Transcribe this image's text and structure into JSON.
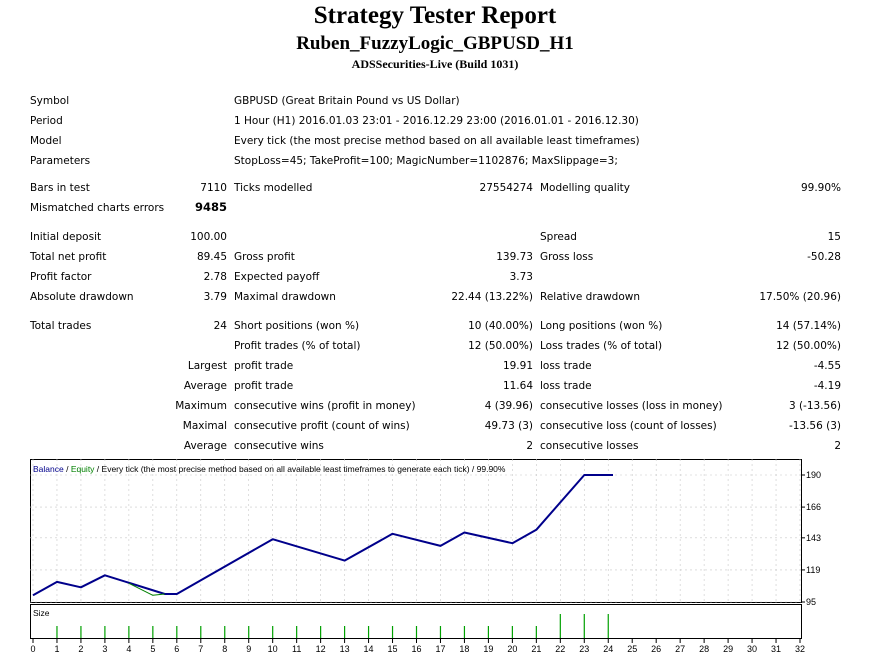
{
  "header": {
    "title": "Strategy Tester Report",
    "subtitle": "Ruben_FuzzyLogic_GBPUSD_H1",
    "build": "ADSSecurities-Live (Build 1031)"
  },
  "info": {
    "symbol_label": "Symbol",
    "symbol_value": "GBPUSD (Great Britain Pound vs US Dollar)",
    "period_label": "Period",
    "period_value": "1 Hour (H1) 2016.01.03 23:01 - 2016.12.29 23:00 (2016.01.01 - 2016.12.30)",
    "model_label": "Model",
    "model_value": "Every tick (the most precise method based on all available least timeframes)",
    "params_label": "Parameters",
    "params_value": "StopLoss=45; TakeProfit=100; MagicNumber=1102876; MaxSlippage=3;"
  },
  "stats": {
    "bars_label": "Bars in test",
    "bars_value": "7110",
    "ticks_label": "Ticks modelled",
    "ticks_value": "27554274",
    "quality_label": "Modelling quality",
    "quality_value": "99.90%",
    "mismatch_label": "Mismatched charts errors",
    "mismatch_value": "9485",
    "deposit_label": "Initial deposit",
    "deposit_value": "100.00",
    "spread_label": "Spread",
    "spread_value": "15",
    "netprofit_label": "Total net profit",
    "netprofit_value": "89.45",
    "grossprofit_label": "Gross profit",
    "grossprofit_value": "139.73",
    "grossloss_label": "Gross loss",
    "grossloss_value": "-50.28",
    "pf_label": "Profit factor",
    "pf_value": "2.78",
    "payoff_label": "Expected payoff",
    "payoff_value": "3.73",
    "absdd_label": "Absolute drawdown",
    "absdd_value": "3.79",
    "maxdd_label": "Maximal drawdown",
    "maxdd_value": "22.44 (13.22%)",
    "reldd_label": "Relative drawdown",
    "reldd_value": "17.50% (20.96)",
    "trades_label": "Total trades",
    "trades_value": "24",
    "short_label": "Short positions (won %)",
    "short_value": "10 (40.00%)",
    "long_label": "Long positions (won %)",
    "long_value": "14 (57.14%)",
    "ptrades_label": "Profit trades (% of total)",
    "ptrades_value": "12 (50.00%)",
    "ltrades_label": "Loss trades (% of total)",
    "ltrades_value": "12 (50.00%)",
    "largest_label": "Largest",
    "largest_pt_label": "profit trade",
    "largest_pt_value": "19.91",
    "largest_lt_label": "loss trade",
    "largest_lt_value": "-4.55",
    "average_label": "Average",
    "average_pt_label": "profit trade",
    "average_pt_value": "11.64",
    "average_lt_label": "loss trade",
    "average_lt_value": "-4.19",
    "maximum_label": "Maximum",
    "maxcw_label": "consecutive wins (profit in money)",
    "maxcw_value": "4 (39.96)",
    "maxcl_label": "consecutive losses (loss in money)",
    "maxcl_value": "3 (-13.56)",
    "maximal_label": "Maximal",
    "maxcp_label": "consecutive profit (count of wins)",
    "maxcp_value": "49.73 (3)",
    "maxclc_label": "consecutive loss (count of losses)",
    "maxclc_value": "-13.56 (3)",
    "average2_label": "Average",
    "avgcw_label": "consecutive wins",
    "avgcw_value": "2",
    "avgcl_label": "consecutive losses",
    "avgcl_value": "2"
  },
  "chart_data": {
    "type": "line",
    "legend_balance": "Balance",
    "legend_sep": " / ",
    "legend_equity": "Equity",
    "legend_rest": " / Every tick (the most precise method based on all available least timeframes to generate each tick) / 99.90%",
    "size_label": "Size",
    "yticks": [
      190,
      166,
      143,
      119,
      95
    ],
    "ylim": [
      95,
      190
    ],
    "xticks": [
      0,
      1,
      2,
      3,
      4,
      5,
      6,
      7,
      8,
      9,
      10,
      11,
      12,
      13,
      14,
      15,
      16,
      17,
      18,
      19,
      20,
      21,
      22,
      23,
      24,
      25,
      26,
      27,
      28,
      29,
      30,
      31,
      32
    ],
    "xlim": [
      0,
      32
    ],
    "balance_color": "#00008b",
    "equity_color": "#008000",
    "series": [
      {
        "name": "Balance",
        "x": [
          0,
          1,
          2,
          3,
          5.5,
          6,
          10,
          13,
          15,
          17,
          18,
          20,
          21,
          23,
          24.2
        ],
        "y": [
          100,
          110,
          106,
          115,
          101,
          101,
          142,
          126,
          146,
          137,
          147,
          139,
          149,
          190,
          190
        ]
      },
      {
        "name": "Equity",
        "x": [
          4,
          5,
          5.5
        ],
        "y": [
          109,
          100,
          101
        ]
      }
    ],
    "size_bars": {
      "x": [
        1,
        2,
        3,
        4,
        5,
        6,
        7,
        8,
        9,
        10,
        11,
        12,
        13,
        14,
        15,
        16,
        17,
        18,
        19,
        20,
        21,
        22,
        23,
        24
      ],
      "heights": [
        1,
        1,
        1,
        1,
        1,
        1,
        1,
        1,
        1,
        1,
        1,
        1,
        1,
        1,
        1,
        1,
        1,
        1,
        1,
        1,
        1,
        2,
        2,
        2
      ]
    }
  }
}
